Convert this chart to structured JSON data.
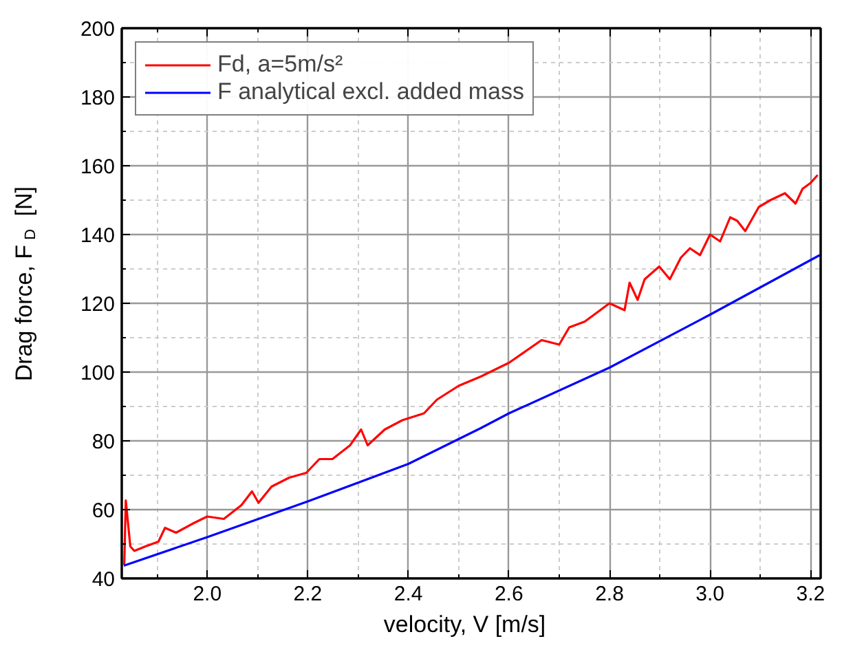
{
  "chart_data": {
    "type": "line",
    "xlabel": "velocity, V   [m/s]",
    "ylabel": "Drag force, F$_{D}$  [N]",
    "xlim": [
      1.83,
      3.22
    ],
    "xticks": [
      {
        "value": 2,
        "label": "2.0"
      },
      2.2,
      2.4,
      2.6,
      2.8,
      {
        "value": 3,
        "label": "3.0"
      },
      3.2
    ],
    "ylim": [
      40,
      200
    ],
    "yticks": [
      40,
      60,
      80,
      100,
      120,
      140,
      160,
      180,
      200
    ],
    "grid": true,
    "legend": "top left",
    "line_style": "solid",
    "series": [
      {
        "name": "Fd, a=5m/s²",
        "color": "#ff0000",
        "x": [
          1.835,
          1.838,
          1.847,
          1.855,
          1.877,
          1.903,
          1.916,
          1.938,
          1.972,
          2.0,
          2.033,
          2.068,
          2.089,
          2.102,
          2.128,
          2.163,
          2.197,
          2.223,
          2.249,
          2.284,
          2.306,
          2.319,
          2.353,
          2.388,
          2.431,
          2.457,
          2.5,
          2.544,
          2.6,
          2.665,
          2.7,
          2.72,
          2.751,
          2.8,
          2.83,
          2.84,
          2.856,
          2.87,
          2.899,
          2.92,
          2.942,
          2.96,
          2.98,
          3.0,
          3.02,
          3.04,
          3.054,
          3.07,
          3.097,
          3.12,
          3.149,
          3.17,
          3.184,
          3.2,
          3.214
        ],
        "values": [
          44,
          62.7,
          49.3,
          48,
          49.3,
          50.7,
          54.7,
          53.3,
          56,
          58,
          57.3,
          61.3,
          65.3,
          62,
          66.7,
          69.3,
          70.7,
          74.7,
          74.7,
          78.7,
          83.3,
          78.7,
          83.3,
          86,
          88,
          92,
          96,
          98.7,
          102.7,
          109.3,
          108,
          113,
          114.7,
          120,
          118,
          126,
          121,
          127,
          130.7,
          127,
          133.3,
          136,
          134,
          140,
          138,
          145,
          144,
          141,
          148,
          150,
          152,
          149,
          153.3,
          155,
          157.3
        ]
      },
      {
        "name": "F analytical excl. added mass",
        "color": "#0000ff",
        "x": [
          1.834,
          2.0,
          2.2,
          2.4,
          2.544,
          2.6,
          2.8,
          3.0,
          3.218
        ],
        "values": [
          43.7,
          52,
          62.4,
          73.3,
          83.7,
          88,
          101.3,
          116.7,
          134
        ]
      }
    ]
  }
}
